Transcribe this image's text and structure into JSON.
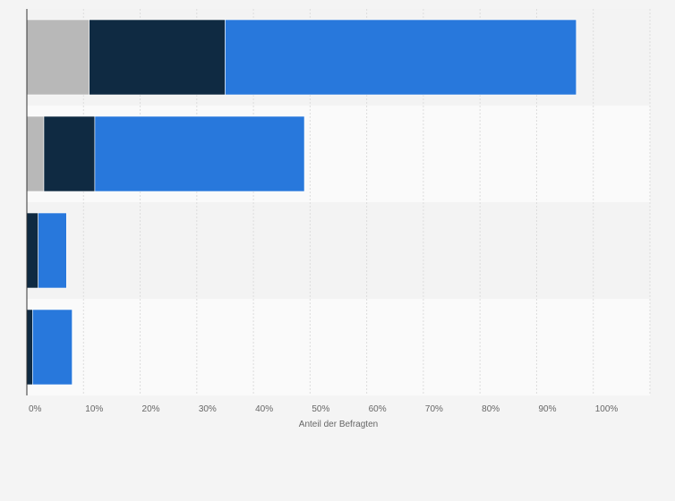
{
  "chart_data": {
    "type": "bar",
    "orientation": "horizontal",
    "stacked": true,
    "categories": [
      "",
      "",
      "",
      ""
    ],
    "series": [
      {
        "values": [
          11,
          3,
          0,
          0
        ],
        "color": "#b8b8b8"
      },
      {
        "values": [
          24,
          9,
          2,
          1
        ],
        "color": "#0f2a42"
      },
      {
        "values": [
          62,
          37,
          5,
          7
        ],
        "color": "#2878dc"
      }
    ],
    "xlabel": "Anteil der Befragten",
    "ylabel": "",
    "title": "",
    "xlim": [
      0,
      110
    ],
    "x_ticks": [
      0,
      10,
      20,
      30,
      40,
      50,
      60,
      70,
      80,
      90,
      100
    ],
    "x_tick_labels": [
      "0%",
      "10%",
      "20%",
      "30%",
      "40%",
      "50%",
      "60%",
      "70%",
      "80%",
      "90%",
      "100%"
    ],
    "grid": true,
    "legend": "none"
  }
}
